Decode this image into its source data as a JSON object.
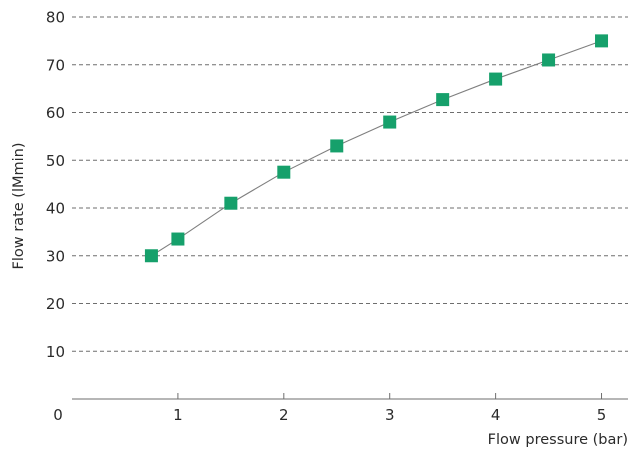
{
  "chart_data": {
    "type": "line",
    "title": "",
    "xlabel": "Flow pressure (bar)",
    "ylabel": "Flow rate (lMmin)",
    "xlim": [
      0,
      5.25
    ],
    "ylim": [
      0,
      80
    ],
    "origin_label": "0",
    "x_ticks": [
      1,
      2,
      3,
      4,
      5
    ],
    "x_tick_labels": [
      "1",
      "2",
      "3",
      "4",
      "5"
    ],
    "y_ticks": [
      10,
      20,
      30,
      40,
      50,
      60,
      70,
      80
    ],
    "y_tick_labels": [
      "10",
      "20",
      "30",
      "40",
      "50",
      "60",
      "70",
      "80"
    ],
    "grid": "horizontal-dashed",
    "marker": "square",
    "marker_color": "#16a06b",
    "line_color": "#7f7f7f",
    "series": [
      {
        "x": [
          0.75,
          1,
          1.5,
          2,
          2.5,
          3,
          3.5,
          4,
          4.5,
          5
        ],
        "y": [
          30,
          33.5,
          41,
          47.5,
          53,
          58,
          62.7,
          67,
          71,
          75
        ]
      }
    ]
  }
}
